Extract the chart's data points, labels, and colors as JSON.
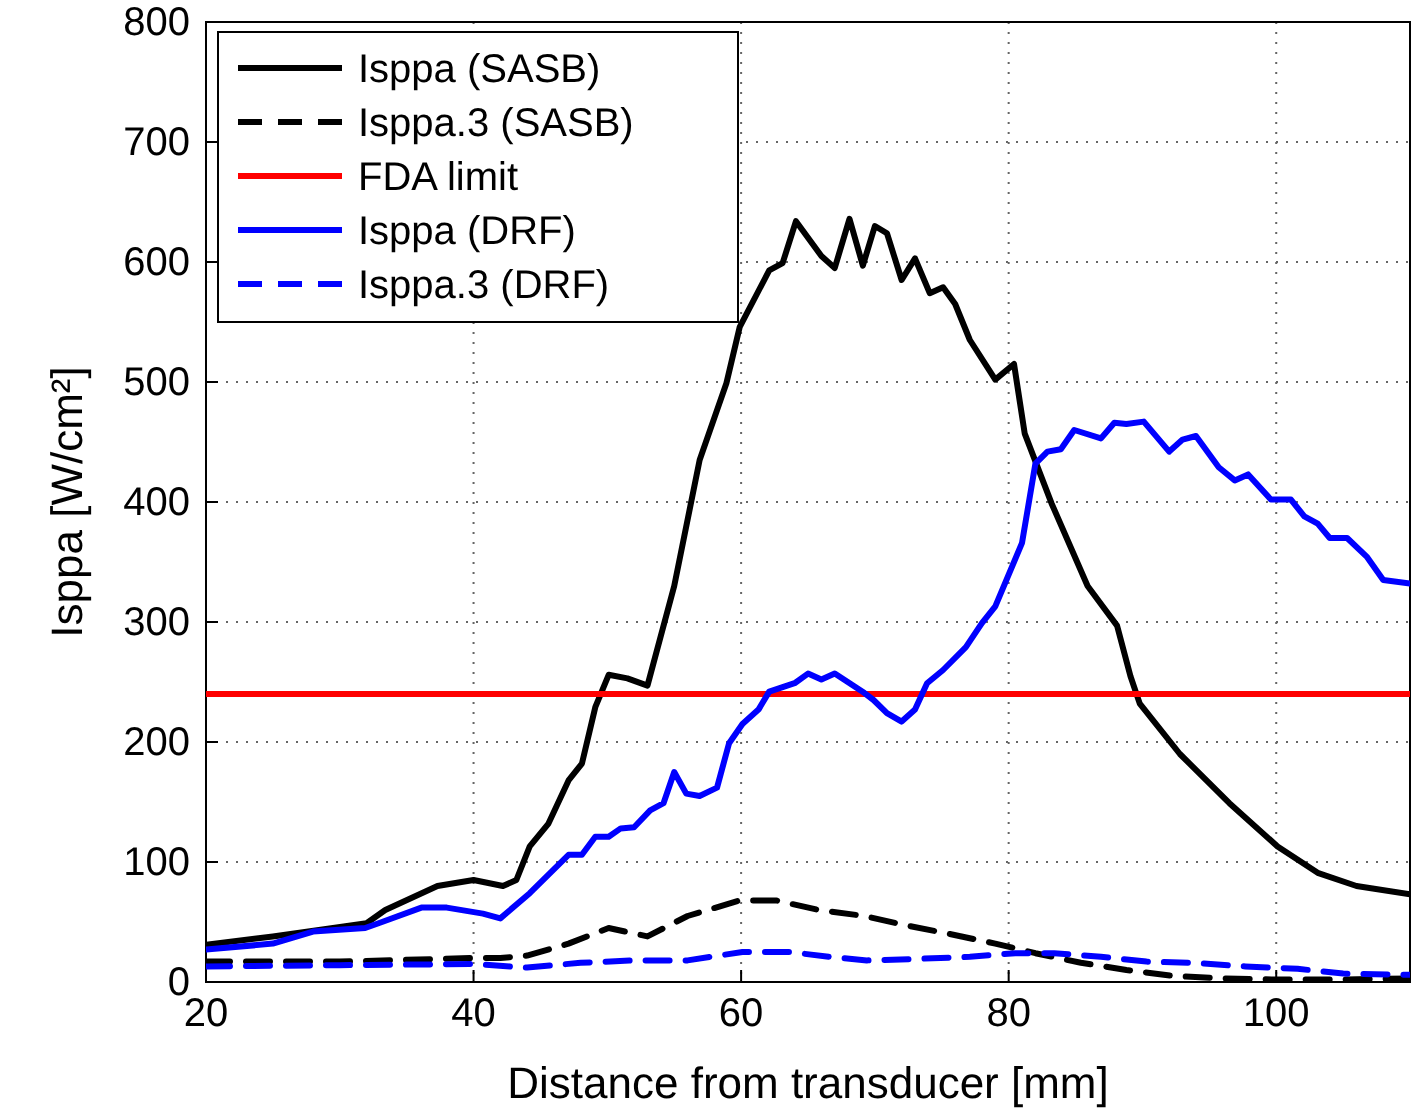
{
  "chart_data": {
    "type": "line",
    "xlabel": "Distance from transducer [mm]",
    "ylabel": "Isppa [W/cm²]",
    "xlim": [
      20,
      110
    ],
    "ylim": [
      0,
      800
    ],
    "xticks": [
      20,
      40,
      60,
      80,
      100
    ],
    "yticks": [
      0,
      100,
      200,
      300,
      400,
      500,
      600,
      700,
      800
    ],
    "grid": true,
    "legend": "top left",
    "marker": "none",
    "series": [
      {
        "name": "Isppa (SASB)",
        "color": "#000000",
        "line_style": "solid",
        "x": [
          20,
          25,
          32,
          33.4,
          37.3,
          40,
          42.2,
          43.2,
          44.2,
          45.6,
          47.1,
          48.1,
          49.1,
          50.1,
          51.5,
          53,
          55,
          56.9,
          58.9,
          59.9,
          62.1,
          63.1,
          64.1,
          66,
          67,
          68.1,
          69.1,
          70,
          70.9,
          72,
          73,
          74.1,
          75.1,
          76,
          77.1,
          79,
          80.4,
          81.2,
          83.2,
          85.9,
          88.1,
          89.1,
          89.8,
          92.8,
          96.5,
          100.1,
          103.1,
          106,
          110
        ],
        "values": [
          31,
          38,
          49,
          60,
          80,
          85,
          80,
          85,
          113,
          132,
          168,
          182,
          229,
          256,
          253,
          247,
          330,
          435,
          499,
          546,
          593,
          599,
          634,
          605,
          595,
          636,
          597,
          630,
          624,
          585,
          603,
          574,
          579,
          565,
          535,
          502,
          515,
          457,
          399,
          330,
          297,
          255,
          232,
          190,
          149,
          113,
          91,
          80,
          73
        ]
      },
      {
        "name": "Isppa.3 (SASB)",
        "color": "#000000",
        "line_style": "dashed",
        "x": [
          20,
          30,
          40,
          42,
          44,
          47.1,
          50.1,
          53,
          56,
          59.9,
          62.6,
          65.8,
          69.2,
          72.4,
          75.6,
          79,
          82,
          85.4,
          88.8,
          92.3,
          96.2,
          100.1,
          105,
          110
        ],
        "values": [
          17,
          17,
          20,
          20,
          22,
          32,
          45,
          38,
          55,
          68,
          68,
          60,
          55,
          47,
          40,
          32,
          24,
          16,
          10,
          5,
          3,
          2,
          2,
          3
        ]
      },
      {
        "name": "FDA limit",
        "color": "#ff0000",
        "line_style": "solid",
        "x": [
          20,
          110
        ],
        "values": [
          240,
          240
        ]
      },
      {
        "name": "Isppa (DRF)",
        "color": "#0000ff",
        "line_style": "solid",
        "x": [
          20,
          25,
          28,
          31.9,
          32.9,
          36.1,
          38,
          40.7,
          42,
          44.2,
          47.1,
          48.1,
          49.1,
          50.1,
          51,
          52,
          53.2,
          54.2,
          55,
          55.9,
          56.9,
          58.2,
          59.1,
          60.1,
          61.3,
          62.1,
          64,
          65,
          66,
          67,
          69.2,
          69.9,
          70.9,
          72,
          73,
          73.9,
          75.1,
          76.8,
          78,
          79,
          81,
          82,
          82.9,
          83.9,
          84.9,
          86.9,
          87.9,
          88.8,
          90.1,
          92,
          93,
          94,
          95.7,
          96.9,
          97.9,
          99.6,
          101.1,
          102.1,
          103.1,
          104,
          105.3,
          106.8,
          108,
          110
        ],
        "values": [
          27,
          32,
          42,
          45,
          49,
          62,
          62,
          57,
          53,
          74,
          106,
          106,
          121,
          121,
          128,
          129,
          143,
          149,
          175,
          157,
          155,
          162,
          199,
          215,
          227,
          242,
          249,
          257,
          252,
          257,
          241,
          235,
          224,
          217,
          227,
          249,
          260,
          279,
          299,
          313,
          366,
          432,
          442,
          444,
          460,
          453,
          466,
          465,
          467,
          442,
          452,
          455,
          429,
          418,
          423,
          402,
          402,
          388,
          382,
          370,
          370,
          354,
          335,
          332
        ]
      },
      {
        "name": "Isppa.3 (DRF)",
        "color": "#0000ff",
        "line_style": "dashed",
        "x": [
          20,
          30,
          40,
          44,
          48,
          52,
          56,
          60.1,
          63.6,
          66.6,
          69.4,
          72.6,
          77.1,
          80.5,
          83.4,
          86.9,
          90.3,
          93.7,
          97.7,
          101.6,
          105,
          110
        ],
        "values": [
          13,
          14,
          15,
          12,
          16,
          18,
          18,
          25,
          25,
          21,
          18,
          19,
          21,
          24,
          24,
          21,
          17,
          16,
          13,
          11,
          7,
          6
        ]
      }
    ]
  }
}
